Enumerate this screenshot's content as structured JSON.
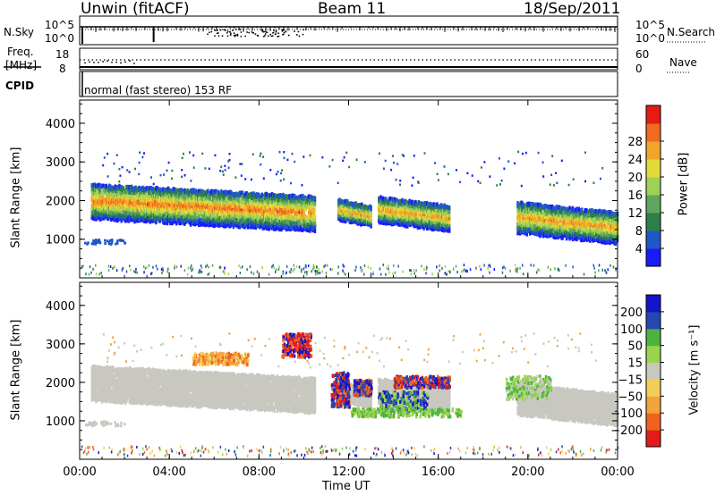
{
  "header": {
    "station": "Unwin (fitACF)",
    "beam": "Beam 11",
    "date": "18/Sep/2011"
  },
  "noise_panel": {
    "left_label": "N.Sky",
    "left_ticks": [
      "10^5",
      "10^0"
    ],
    "right_ticks": [
      "10^5",
      "10^0"
    ],
    "right_label": "N.Search"
  },
  "freq_panel": {
    "left_label_top": "Freq.",
    "left_label_bottom": "[MHz]",
    "left_ticks": [
      "18",
      "8"
    ],
    "right_ticks": [
      "60",
      "0"
    ],
    "right_label": "Nave"
  },
  "cpid_panel": {
    "label": "CPID",
    "text": "normal (fast stereo) 153 RF"
  },
  "chart_data": [
    {
      "type": "heatmap",
      "title": "",
      "ylabel": "Slant Range [km]",
      "xlabel": "",
      "ylim": [
        0,
        4600
      ],
      "xlim": [
        "00:00",
        "24:00"
      ],
      "y_ticks": [
        1000,
        2000,
        3000,
        4000
      ],
      "colorbar": {
        "label": "Power [dB]",
        "ticks": [
          4,
          8,
          12,
          16,
          20,
          24,
          28
        ],
        "range": [
          0,
          30
        ],
        "colors": [
          "#1a1aff",
          "#1f57c9",
          "#2e7e4a",
          "#5fa65c",
          "#9ed257",
          "#e3d93b",
          "#f2a52b",
          "#f06a1f",
          "#e41c14"
        ]
      },
      "bands": [
        {
          "t_start": 0.5,
          "t_end": 10.5,
          "range_start": 1450,
          "range_end": 2350,
          "peak_db": 26
        },
        {
          "t_start": 11.5,
          "t_end": 13.0,
          "range_start": 1500,
          "range_end": 2000,
          "peak_db": 24
        },
        {
          "t_start": 13.3,
          "t_end": 16.5,
          "range_start": 1400,
          "range_end": 2050,
          "peak_db": 24
        },
        {
          "t_start": 19.5,
          "t_end": 24.0,
          "range_start": 1100,
          "range_end": 1900,
          "peak_db": 24
        }
      ]
    },
    {
      "type": "heatmap",
      "title": "",
      "ylabel": "Slant Range [km]",
      "xlabel": "Time UT",
      "ylim": [
        0,
        4600
      ],
      "xlim": [
        "00:00",
        "24:00"
      ],
      "x_ticks": [
        "00:00",
        "04:00",
        "08:00",
        "12:00",
        "16:00",
        "20:00",
        "00:00"
      ],
      "y_ticks": [
        1000,
        2000,
        3000,
        4000
      ],
      "colorbar": {
        "label": "Velocity [m s⁻¹]",
        "ticks": [
          "200",
          "100",
          "50",
          "15",
          "−15",
          "−50",
          "−100",
          "−200"
        ],
        "range": [
          -250,
          250
        ],
        "colors": [
          "#e31b1b",
          "#f0631f",
          "#f2a33a",
          "#f2cf57",
          "#c8c8c0",
          "#9ad34e",
          "#4eb33e",
          "#2646b0",
          "#1414cc"
        ]
      }
    }
  ]
}
